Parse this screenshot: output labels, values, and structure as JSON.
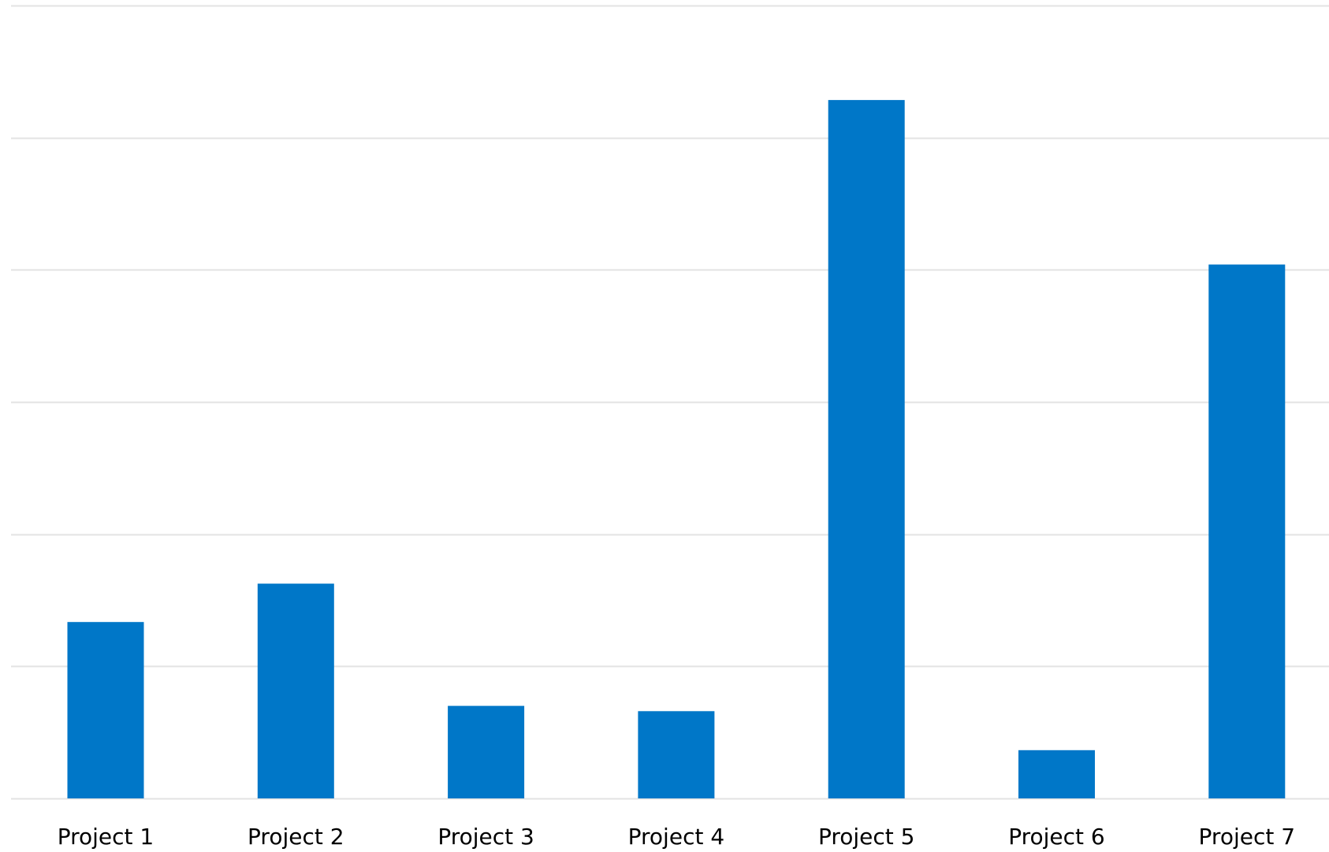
{
  "chart_data": {
    "type": "bar",
    "title": "",
    "xlabel": "",
    "ylabel": "",
    "categories": [
      "Project 1",
      "Project 2",
      "Project 3",
      "Project 4",
      "Project 5",
      "Project 6",
      "Project 7"
    ],
    "values": [
      2.67,
      3.25,
      1.4,
      1.32,
      10.57,
      0.73,
      8.08
    ],
    "ylim": [
      0,
      12
    ],
    "gridlines": [
      0,
      2,
      4,
      6,
      8,
      10,
      12
    ],
    "grid": true,
    "legend": "none",
    "colors": {
      "bar": "#0077C8",
      "grid": "#E3E3E3",
      "text": "#000000"
    }
  }
}
